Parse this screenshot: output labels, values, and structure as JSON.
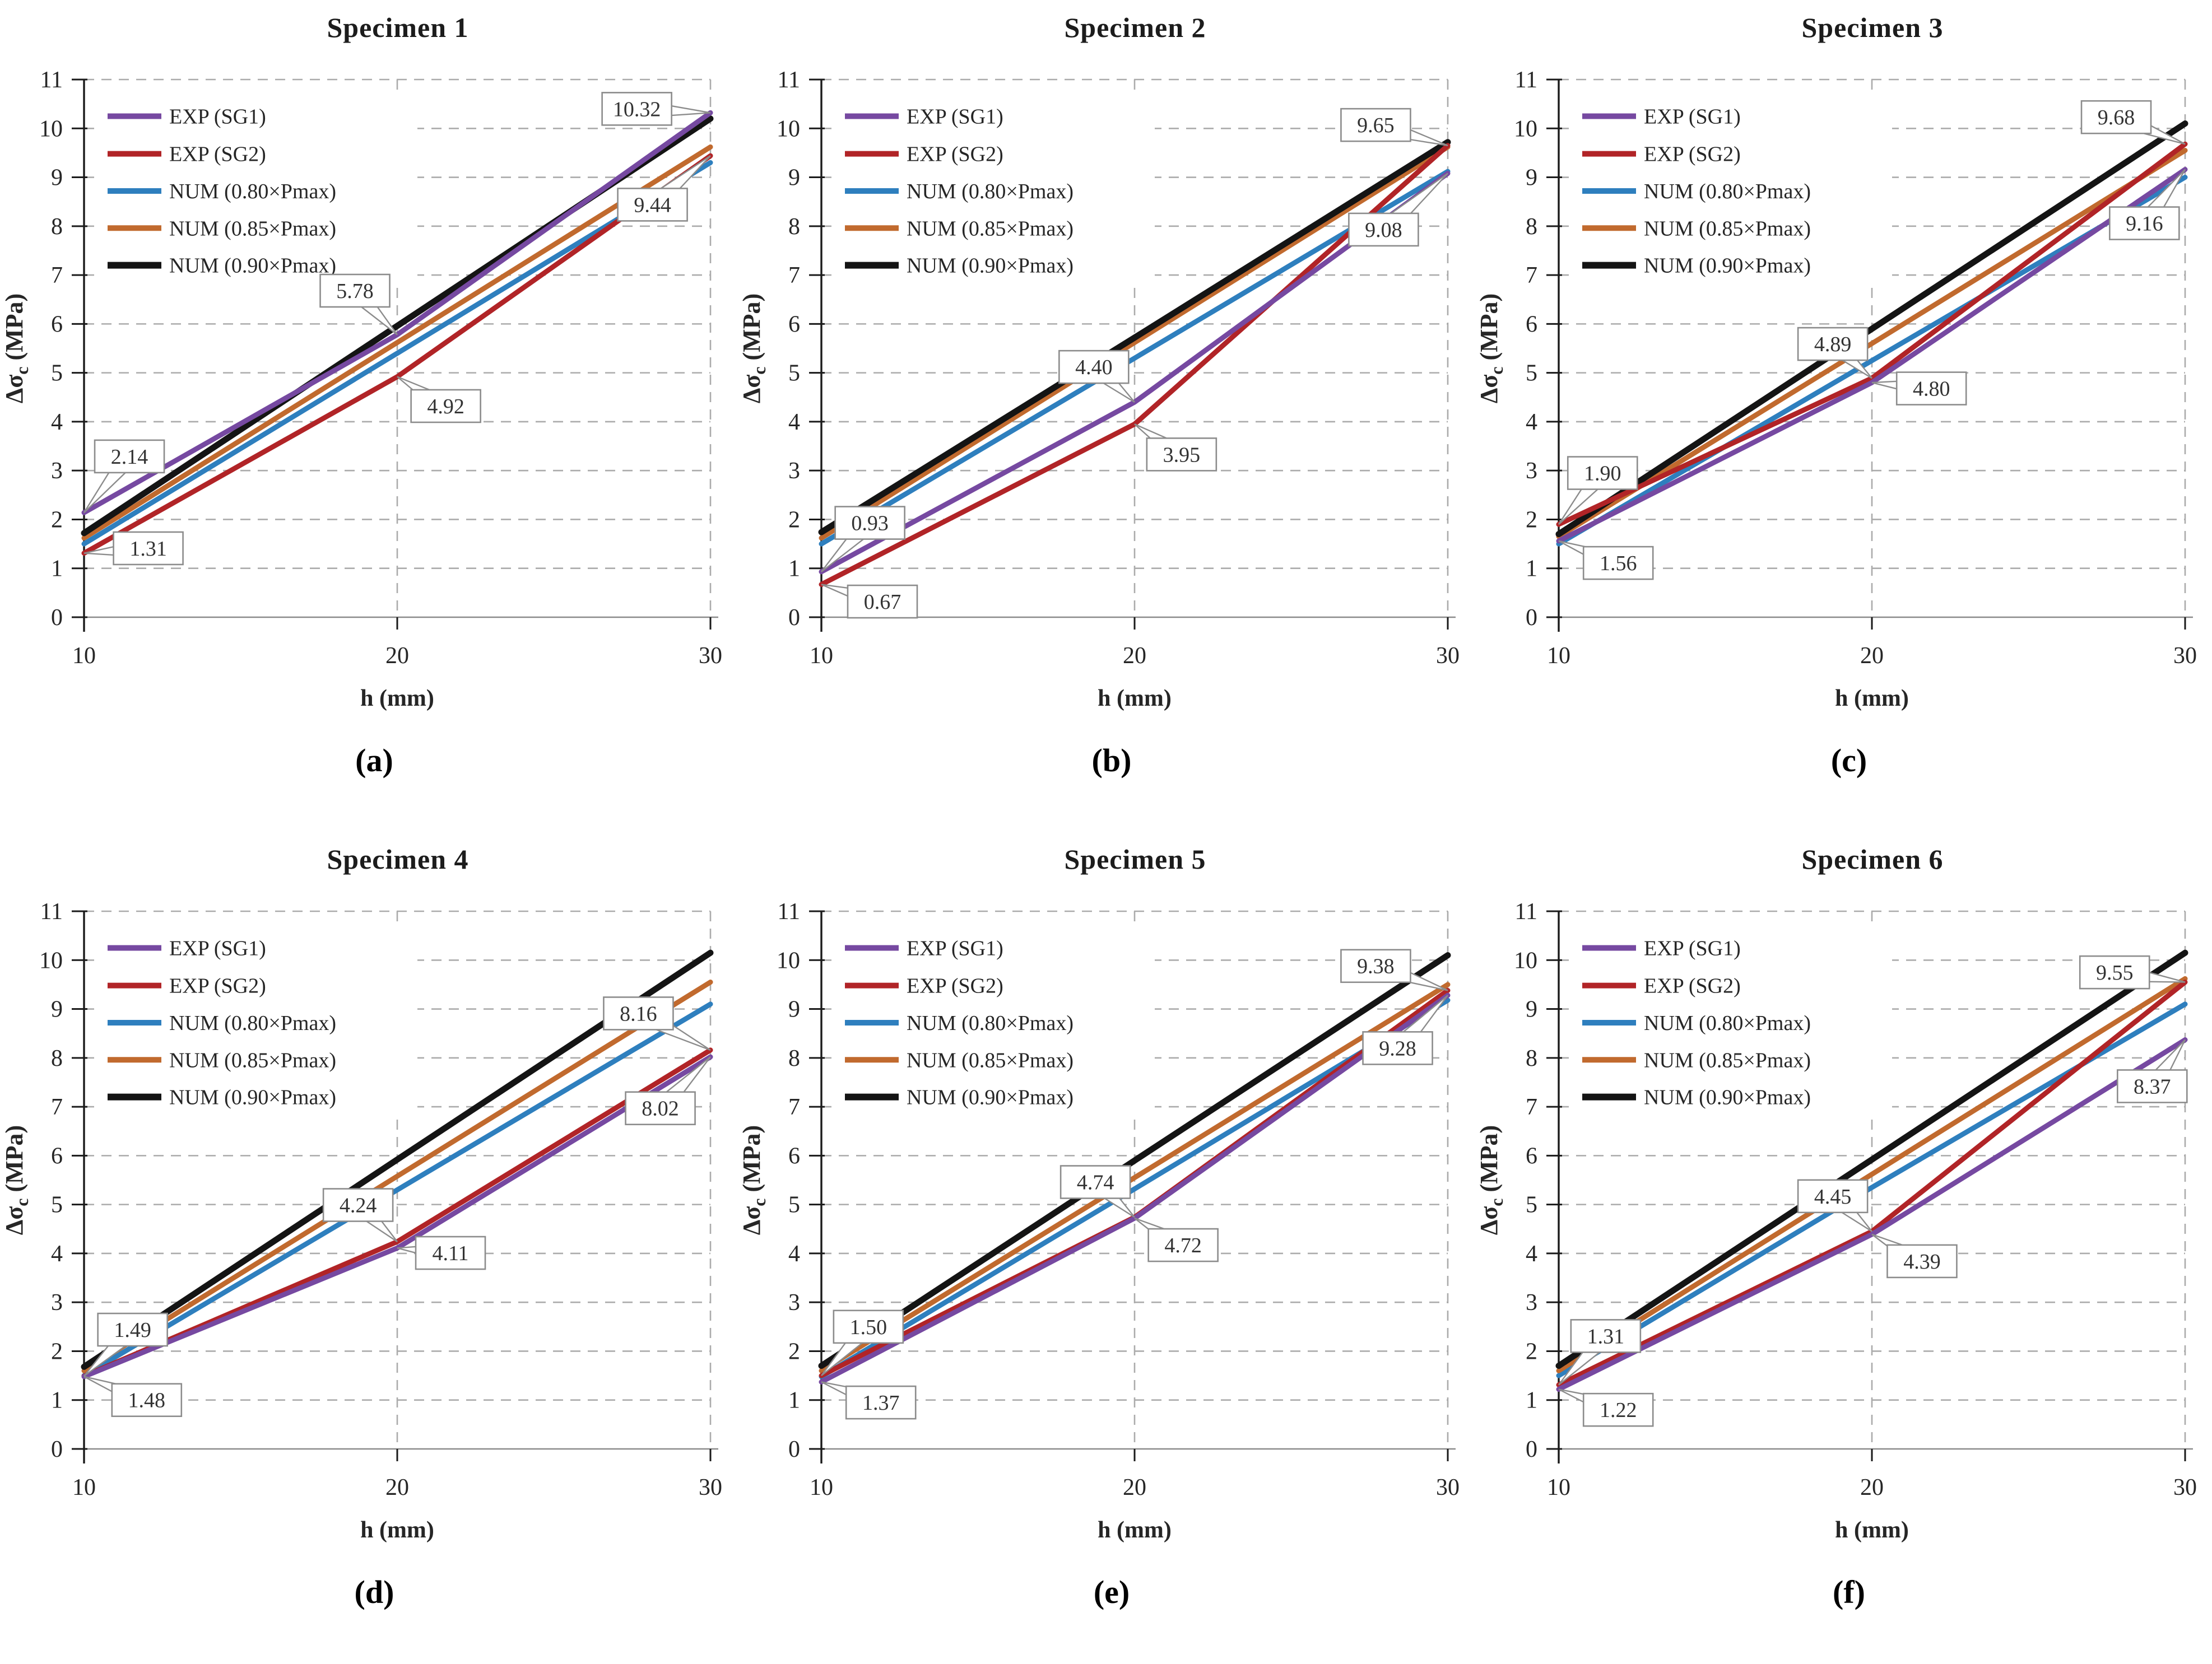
{
  "figure": {
    "background": "#ffffff",
    "description_visible_text_only": true
  },
  "colors": {
    "exp_sg1": "#7649A1",
    "exp_sg2": "#B12427",
    "num_080": "#2E7FBE",
    "num_085": "#C16A2E",
    "num_090": "#141414",
    "grid": "#ABABAB",
    "axis": "#1A1A1A",
    "baseline": "#8A8A8A",
    "tick_text": "#262626",
    "callout_border": "#8C8C8C",
    "callout_text": "#333333"
  },
  "axis": {
    "x_tick_values": [
      10,
      20,
      30
    ],
    "x_tick_labels": [
      "10",
      "20",
      "30"
    ],
    "y_tick_values": [
      0,
      1,
      2,
      3,
      4,
      5,
      6,
      7,
      8,
      9,
      10,
      11
    ],
    "y_tick_labels": [
      "0",
      "1",
      "2",
      "3",
      "4",
      "5",
      "6",
      "7",
      "8",
      "9",
      "10",
      "11"
    ],
    "xlim": [
      10,
      30
    ],
    "ylim": [
      0,
      11
    ],
    "grid": "dashed"
  },
  "chart_data": [
    {
      "type": "line",
      "title": "Specimen 1",
      "caption": "(a)",
      "xlabel": "h (mm)",
      "ylabel": {
        "pre": "Δσ",
        "sub": "c",
        "post": " (MPa)"
      },
      "x": [
        10,
        20,
        30
      ],
      "xlim": [
        10,
        30
      ],
      "ylim": [
        0,
        11
      ],
      "legend_position": "top-left",
      "series": [
        {
          "name": "EXP (SG1)",
          "color": "exp_sg1",
          "values": [
            2.14,
            5.78,
            10.32
          ],
          "z": 4,
          "w": 9
        },
        {
          "name": "EXP (SG2)",
          "color": "exp_sg2",
          "values": [
            1.31,
            4.92,
            9.44
          ],
          "z": 3,
          "w": 9
        },
        {
          "name": "NUM (0.80×Pmax)",
          "color": "num_080",
          "values": [
            1.5,
            5.4,
            9.3
          ],
          "z": 0,
          "w": 9
        },
        {
          "name": "NUM (0.85×Pmax)",
          "color": "num_085",
          "values": [
            1.62,
            5.62,
            9.62
          ],
          "z": 1,
          "w": 9
        },
        {
          "name": "NUM (0.90×Pmax)",
          "color": "num_090",
          "values": [
            1.72,
            5.96,
            10.2
          ],
          "z": 2,
          "w": 11
        }
      ],
      "callouts": [
        {
          "v": "2.14",
          "x": 10,
          "y": 2.14,
          "dx": 1.45,
          "dy": 1.15
        },
        {
          "v": "1.31",
          "x": 10,
          "y": 1.31,
          "dx": 2.05,
          "dy": 0.1
        },
        {
          "v": "5.78",
          "x": 20,
          "y": 5.78,
          "dx": -1.35,
          "dy": 0.9
        },
        {
          "v": "4.92",
          "x": 20,
          "y": 4.92,
          "dx": 1.55,
          "dy": -0.6
        },
        {
          "v": "10.32",
          "x": 30,
          "y": 10.32,
          "dx": -2.35,
          "dy": 0.08
        },
        {
          "v": "9.44",
          "x": 30,
          "y": 9.44,
          "dx": -1.85,
          "dy": -1.0
        }
      ]
    },
    {
      "type": "line",
      "title": "Specimen 2",
      "caption": "(b)",
      "xlabel": "h (mm)",
      "ylabel": {
        "pre": "Δσ",
        "sub": "c",
        "post": " (MPa)"
      },
      "x": [
        10,
        20,
        30
      ],
      "xlim": [
        10,
        30
      ],
      "ylim": [
        0,
        11
      ],
      "legend_position": "top-left",
      "series": [
        {
          "name": "EXP (SG1)",
          "color": "exp_sg1",
          "values": [
            0.93,
            4.4,
            9.08
          ],
          "z": 4,
          "w": 9
        },
        {
          "name": "EXP (SG2)",
          "color": "exp_sg2",
          "values": [
            0.67,
            3.95,
            9.65
          ],
          "z": 3,
          "w": 9
        },
        {
          "name": "NUM (0.80×Pmax)",
          "color": "num_080",
          "values": [
            1.5,
            5.3,
            9.12
          ],
          "z": 0,
          "w": 9
        },
        {
          "name": "NUM (0.85×Pmax)",
          "color": "num_085",
          "values": [
            1.62,
            5.62,
            9.62
          ],
          "z": 1,
          "w": 9
        },
        {
          "name": "NUM (0.90×Pmax)",
          "color": "num_090",
          "values": [
            1.74,
            5.72,
            9.72
          ],
          "z": 2,
          "w": 11
        }
      ],
      "callouts": [
        {
          "v": "0.93",
          "x": 10,
          "y": 0.93,
          "dx": 1.55,
          "dy": 1.0
        },
        {
          "v": "0.67",
          "x": 10,
          "y": 0.67,
          "dx": 1.95,
          "dy": -0.35
        },
        {
          "v": "4.40",
          "x": 20,
          "y": 4.4,
          "dx": -1.3,
          "dy": 0.72
        },
        {
          "v": "3.95",
          "x": 20,
          "y": 3.95,
          "dx": 1.5,
          "dy": -0.62
        },
        {
          "v": "9.65",
          "x": 30,
          "y": 9.65,
          "dx": -2.3,
          "dy": 0.42
        },
        {
          "v": "9.08",
          "x": 30,
          "y": 9.08,
          "dx": -2.05,
          "dy": -1.15
        }
      ]
    },
    {
      "type": "line",
      "title": "Specimen 3",
      "caption": "(c)",
      "xlabel": "h (mm)",
      "ylabel": {
        "pre": "Δσ",
        "sub": "c",
        "post": " (MPa)"
      },
      "x": [
        10,
        20,
        30
      ],
      "xlim": [
        10,
        30
      ],
      "ylim": [
        0,
        11
      ],
      "legend_position": "top-left",
      "series": [
        {
          "name": "EXP (SG1)",
          "color": "exp_sg1",
          "values": [
            1.56,
            4.8,
            9.16
          ],
          "z": 4,
          "w": 9
        },
        {
          "name": "EXP (SG2)",
          "color": "exp_sg2",
          "values": [
            1.9,
            4.89,
            9.68
          ],
          "z": 3,
          "w": 9
        },
        {
          "name": "NUM (0.80×Pmax)",
          "color": "num_080",
          "values": [
            1.5,
            5.25,
            9.0
          ],
          "z": 0,
          "w": 9
        },
        {
          "name": "NUM (0.85×Pmax)",
          "color": "num_085",
          "values": [
            1.65,
            5.6,
            9.55
          ],
          "z": 1,
          "w": 9
        },
        {
          "name": "NUM (0.90×Pmax)",
          "color": "num_090",
          "values": [
            1.7,
            5.9,
            10.1
          ],
          "z": 2,
          "w": 11
        }
      ],
      "callouts": [
        {
          "v": "1.90",
          "x": 10,
          "y": 1.9,
          "dx": 1.4,
          "dy": 1.05
        },
        {
          "v": "1.56",
          "x": 10,
          "y": 1.56,
          "dx": 1.9,
          "dy": -0.45
        },
        {
          "v": "4.89",
          "x": 20,
          "y": 4.89,
          "dx": -1.25,
          "dy": 0.7
        },
        {
          "v": "4.80",
          "x": 20,
          "y": 4.8,
          "dx": 1.9,
          "dy": -0.12
        },
        {
          "v": "9.68",
          "x": 30,
          "y": 9.68,
          "dx": -2.2,
          "dy": 0.55
        },
        {
          "v": "9.16",
          "x": 30,
          "y": 9.16,
          "dx": -1.3,
          "dy": -1.1
        }
      ]
    },
    {
      "type": "line",
      "title": "Specimen 4",
      "caption": "(d)",
      "xlabel": "h (mm)",
      "ylabel": {
        "pre": "Δσ",
        "sub": "c",
        "post": " (MPa)"
      },
      "x": [
        10,
        20,
        30
      ],
      "xlim": [
        10,
        30
      ],
      "ylim": [
        0,
        11
      ],
      "legend_position": "top-left",
      "series": [
        {
          "name": "EXP (SG1)",
          "color": "exp_sg1",
          "values": [
            1.48,
            4.11,
            8.02
          ],
          "z": 4,
          "w": 9
        },
        {
          "name": "EXP (SG2)",
          "color": "exp_sg2",
          "values": [
            1.49,
            4.24,
            8.16
          ],
          "z": 3,
          "w": 9
        },
        {
          "name": "NUM (0.80×Pmax)",
          "color": "num_080",
          "values": [
            1.5,
            5.3,
            9.1
          ],
          "z": 0,
          "w": 9
        },
        {
          "name": "NUM (0.85×Pmax)",
          "color": "num_085",
          "values": [
            1.6,
            5.58,
            9.55
          ],
          "z": 1,
          "w": 9
        },
        {
          "name": "NUM (0.90×Pmax)",
          "color": "num_090",
          "values": [
            1.68,
            5.92,
            10.15
          ],
          "z": 2,
          "w": 11
        }
      ],
      "callouts": [
        {
          "v": "1.49",
          "x": 10,
          "y": 1.49,
          "dx": 1.55,
          "dy": 0.95
        },
        {
          "v": "1.48",
          "x": 10,
          "y": 1.48,
          "dx": 2.0,
          "dy": -0.48
        },
        {
          "v": "4.24",
          "x": 20,
          "y": 4.24,
          "dx": -1.25,
          "dy": 0.75
        },
        {
          "v": "4.11",
          "x": 20,
          "y": 4.11,
          "dx": 1.7,
          "dy": -0.1
        },
        {
          "v": "8.16",
          "x": 30,
          "y": 8.16,
          "dx": -2.3,
          "dy": 0.75
        },
        {
          "v": "8.02",
          "x": 30,
          "y": 8.02,
          "dx": -1.6,
          "dy": -1.05
        }
      ]
    },
    {
      "type": "line",
      "title": "Specimen 5",
      "caption": "(e)",
      "xlabel": "h (mm)",
      "ylabel": {
        "pre": "Δσ",
        "sub": "c",
        "post": " (MPa)"
      },
      "x": [
        10,
        20,
        30
      ],
      "xlim": [
        10,
        30
      ],
      "ylim": [
        0,
        11
      ],
      "legend_position": "top-left",
      "series": [
        {
          "name": "EXP (SG1)",
          "color": "exp_sg1",
          "values": [
            1.37,
            4.72,
            9.28
          ],
          "z": 4,
          "w": 9
        },
        {
          "name": "EXP (SG2)",
          "color": "exp_sg2",
          "values": [
            1.5,
            4.74,
            9.38
          ],
          "z": 3,
          "w": 9
        },
        {
          "name": "NUM (0.80×Pmax)",
          "color": "num_080",
          "values": [
            1.48,
            5.32,
            9.18
          ],
          "z": 0,
          "w": 9
        },
        {
          "name": "NUM (0.85×Pmax)",
          "color": "num_085",
          "values": [
            1.6,
            5.55,
            9.5
          ],
          "z": 1,
          "w": 9
        },
        {
          "name": "NUM (0.90×Pmax)",
          "color": "num_090",
          "values": [
            1.7,
            5.9,
            10.1
          ],
          "z": 2,
          "w": 11
        }
      ],
      "callouts": [
        {
          "v": "1.50",
          "x": 10,
          "y": 1.5,
          "dx": 1.5,
          "dy": 1.0
        },
        {
          "v": "1.37",
          "x": 10,
          "y": 1.37,
          "dx": 1.9,
          "dy": -0.42
        },
        {
          "v": "4.74",
          "x": 20,
          "y": 4.74,
          "dx": -1.25,
          "dy": 0.72
        },
        {
          "v": "4.72",
          "x": 20,
          "y": 4.72,
          "dx": 1.55,
          "dy": -0.55
        },
        {
          "v": "9.38",
          "x": 30,
          "y": 9.38,
          "dx": -2.3,
          "dy": 0.5
        },
        {
          "v": "9.28",
          "x": 30,
          "y": 9.28,
          "dx": -1.6,
          "dy": -1.08
        }
      ]
    },
    {
      "type": "line",
      "title": "Specimen 6",
      "caption": "(f)",
      "xlabel": "h (mm)",
      "ylabel": {
        "pre": "Δσ",
        "sub": "c",
        "post": " (MPa)"
      },
      "x": [
        10,
        20,
        30
      ],
      "xlim": [
        10,
        30
      ],
      "ylim": [
        0,
        11
      ],
      "legend_position": "top-left",
      "series": [
        {
          "name": "EXP (SG1)",
          "color": "exp_sg1",
          "values": [
            1.22,
            4.39,
            8.37
          ],
          "z": 4,
          "w": 9
        },
        {
          "name": "EXP (SG2)",
          "color": "exp_sg2",
          "values": [
            1.31,
            4.45,
            9.55
          ],
          "z": 3,
          "w": 9
        },
        {
          "name": "NUM (0.80×Pmax)",
          "color": "num_080",
          "values": [
            1.5,
            5.35,
            9.1
          ],
          "z": 0,
          "w": 9
        },
        {
          "name": "NUM (0.85×Pmax)",
          "color": "num_085",
          "values": [
            1.6,
            5.62,
            9.62
          ],
          "z": 1,
          "w": 9
        },
        {
          "name": "NUM (0.90×Pmax)",
          "color": "num_090",
          "values": [
            1.7,
            5.92,
            10.15
          ],
          "z": 2,
          "w": 11
        }
      ],
      "callouts": [
        {
          "v": "1.31",
          "x": 10,
          "y": 1.31,
          "dx": 1.5,
          "dy": 1.0
        },
        {
          "v": "1.22",
          "x": 10,
          "y": 1.22,
          "dx": 1.9,
          "dy": -0.42
        },
        {
          "v": "4.45",
          "x": 20,
          "y": 4.45,
          "dx": -1.25,
          "dy": 0.72
        },
        {
          "v": "4.39",
          "x": 20,
          "y": 4.39,
          "dx": 1.6,
          "dy": -0.55
        },
        {
          "v": "9.55",
          "x": 30,
          "y": 9.55,
          "dx": -2.25,
          "dy": 0.2
        },
        {
          "v": "8.37",
          "x": 30,
          "y": 8.37,
          "dx": -1.05,
          "dy": -0.95
        }
      ]
    }
  ]
}
